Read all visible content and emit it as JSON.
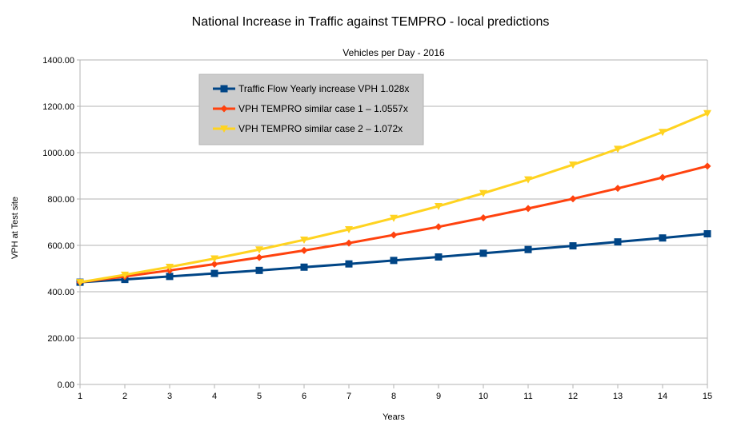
{
  "chart_data": {
    "type": "line",
    "title": "National Increase in Traffic against TEMPRO - local predictions",
    "subtitle": "Vehicles per Day - 2016",
    "xlabel": "Years",
    "ylabel": "VPH at Test site",
    "xlim": [
      1,
      15
    ],
    "ylim": [
      0,
      1400
    ],
    "y_ticks": [
      "0.00",
      "200.00",
      "400.00",
      "600.00",
      "800.00",
      "1000.00",
      "1200.00",
      "1400.00"
    ],
    "x": [
      1,
      2,
      3,
      4,
      5,
      6,
      7,
      8,
      9,
      10,
      11,
      12,
      13,
      14,
      15
    ],
    "grid": "horizontal",
    "legend_position": "top-left",
    "series": [
      {
        "name": "Traffic Flow Yearly increase VPH 1.028x",
        "color": "#004586",
        "marker": "square",
        "values": [
          441,
          453,
          466,
          479,
          492,
          506,
          520,
          535,
          550,
          566,
          582,
          598,
          615,
          632,
          650
        ]
      },
      {
        "name": "VPH TEMPRO similar case 1 – 1.0557x",
        "color": "#ff420e",
        "marker": "diamond",
        "values": [
          441,
          466,
          492,
          519,
          548,
          578,
          610,
          645,
          680,
          719,
          759,
          801,
          846,
          893,
          942
        ]
      },
      {
        "name": "VPH TEMPRO similar case 2 – 1.072x",
        "color": "#ffd320",
        "marker": "triangle-down",
        "values": [
          441,
          473,
          507,
          543,
          582,
          624,
          669,
          718,
          769,
          825,
          884,
          948,
          1016,
          1089,
          1170
        ]
      }
    ]
  }
}
